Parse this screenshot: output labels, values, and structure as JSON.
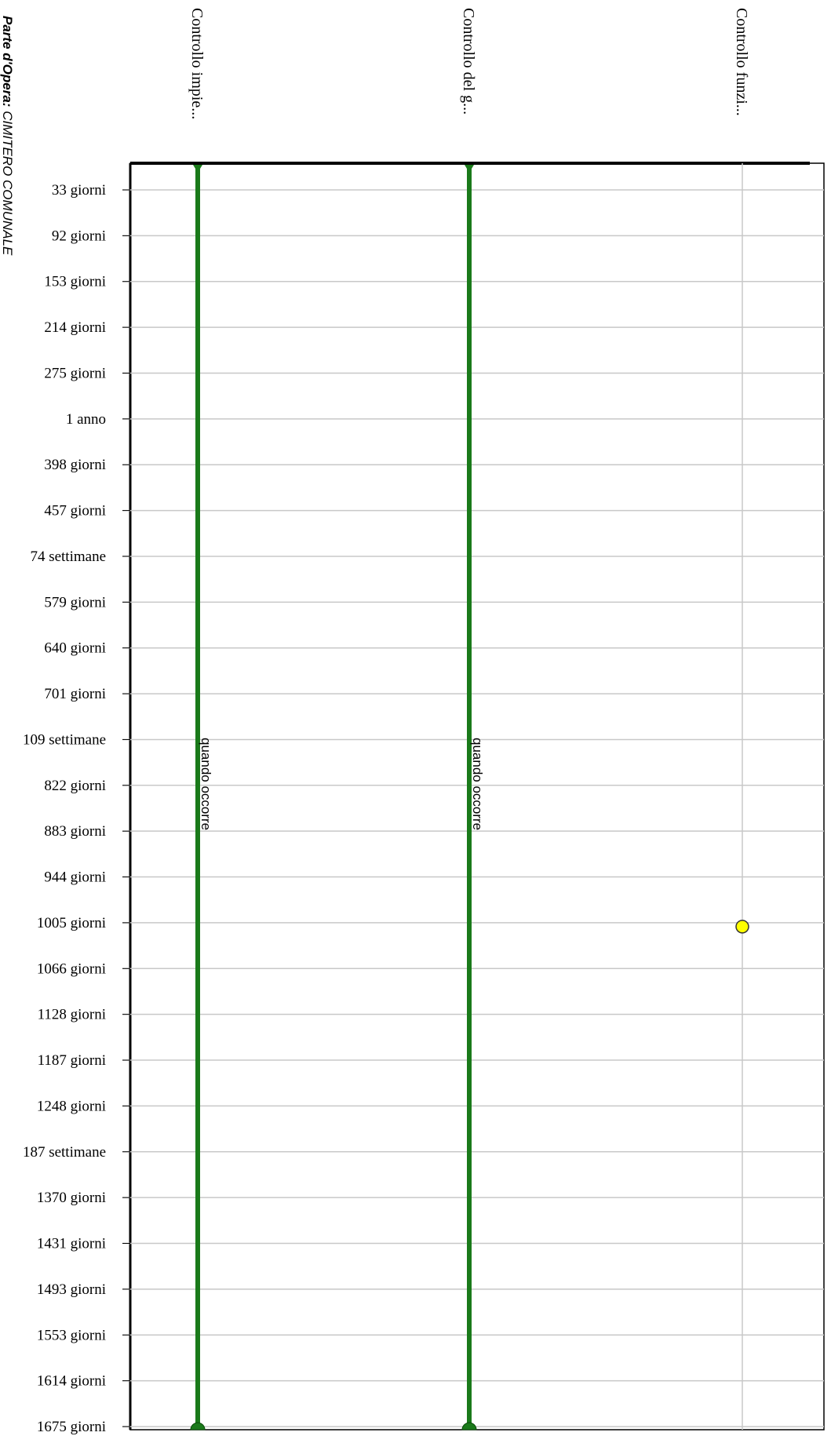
{
  "chart_data": {
    "type": "timeline",
    "side_title": {
      "label": "Parte d'Opera:",
      "value": "CIMITERO COMUNALE"
    },
    "columns": [
      "Controllo impie...",
      "Controllo del g...",
      "Controllo funzi..."
    ],
    "y_ticks": [
      "33 giorni",
      "92 giorni",
      "153 giorni",
      "214 giorni",
      "275 giorni",
      "1 anno",
      "398 giorni",
      "457 giorni",
      "74 settimane",
      "579 giorni",
      "640 giorni",
      "701 giorni",
      "109 settimane",
      "822 giorni",
      "883 giorni",
      "944 giorni",
      "1005 giorni",
      "1066 giorni",
      "1128 giorni",
      "1187 giorni",
      "1248 giorni",
      "187 settimane",
      "1370 giorni",
      "1431 giorni",
      "1493 giorni",
      "1553 giorni",
      "1614 giorni",
      "1675 giorni"
    ],
    "series": [
      {
        "column": 0,
        "kind": "continuous",
        "color": "#1a7a1a",
        "label": "quando occorre"
      },
      {
        "column": 1,
        "kind": "continuous",
        "color": "#1a7a1a",
        "label": "quando occorre"
      },
      {
        "column": 2,
        "kind": "point",
        "color": "#ffff00",
        "at": "1005 giorni"
      }
    ],
    "grid": true
  }
}
